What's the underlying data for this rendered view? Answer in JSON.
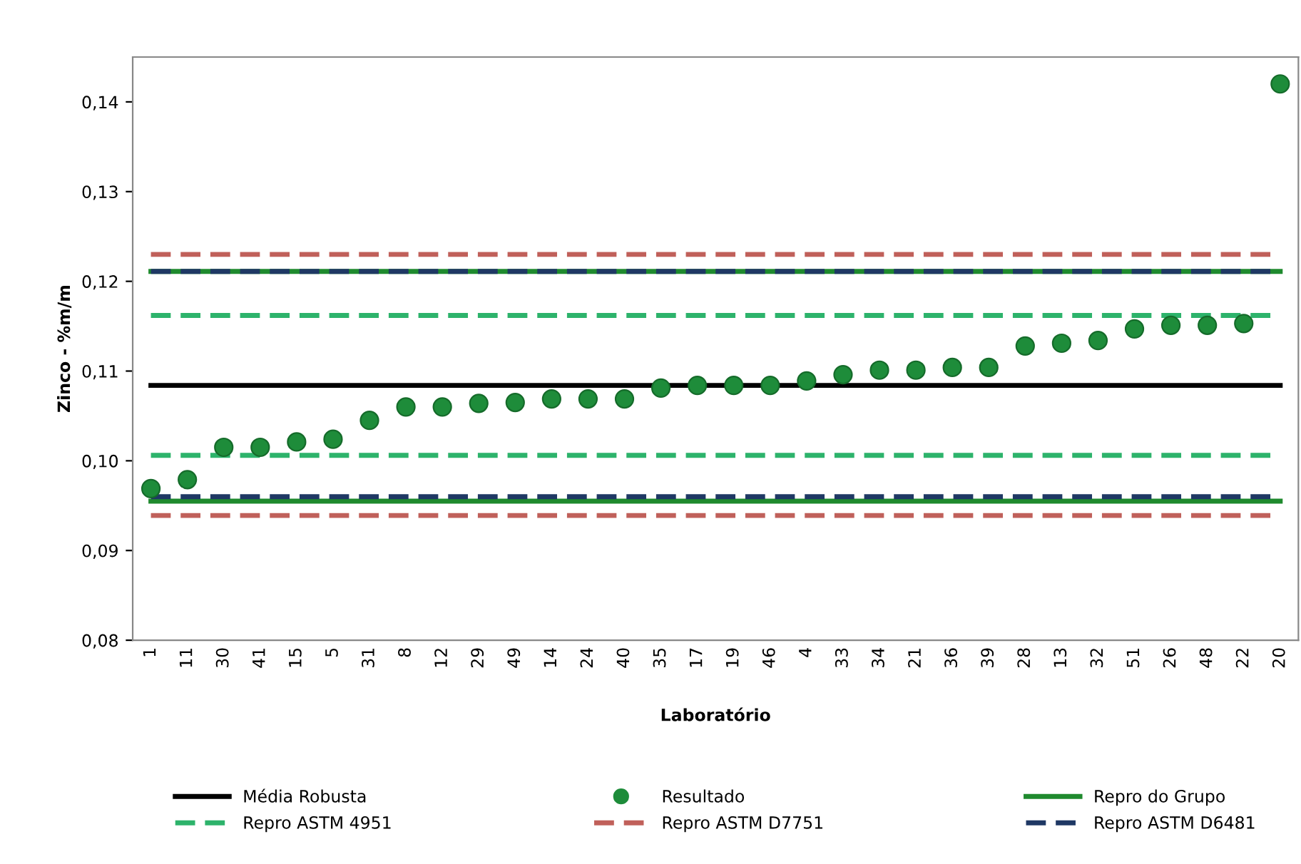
{
  "chart_data": {
    "type": "scatter",
    "xlabel": "Laboratório",
    "ylabel": "Zinco - %m/m",
    "categories": [
      "1",
      "11",
      "30",
      "41",
      "15",
      "5",
      "31",
      "8",
      "12",
      "29",
      "49",
      "14",
      "24",
      "40",
      "35",
      "17",
      "19",
      "46",
      "4",
      "33",
      "34",
      "21",
      "36",
      "39",
      "28",
      "13",
      "32",
      "51",
      "26",
      "48",
      "22",
      "20"
    ],
    "series": [
      {
        "name": "Resultado",
        "color": "#1e8c3a",
        "values": [
          0.0969,
          0.0979,
          0.1015,
          0.1015,
          0.1021,
          0.1024,
          0.1045,
          0.106,
          0.106,
          0.1064,
          0.1065,
          0.1069,
          0.1069,
          0.1069,
          0.1081,
          0.1084,
          0.1084,
          0.1084,
          0.1089,
          0.1096,
          0.1101,
          0.1101,
          0.1104,
          0.1104,
          0.1128,
          0.1131,
          0.1134,
          0.1147,
          0.1151,
          0.1151,
          0.1153,
          0.142
        ]
      }
    ],
    "ref_lines": [
      {
        "axis": "y",
        "value": 0.1084,
        "label": "Média Robusta",
        "color": "#000000",
        "line_style": "solid"
      },
      {
        "axis": "y",
        "value": 0.1211,
        "label": "Repro do Grupo",
        "color": "#1f8a2e",
        "line_style": "solid"
      },
      {
        "axis": "y",
        "value": 0.0955,
        "color": "#1f8a2e",
        "line_style": "solid"
      },
      {
        "axis": "y",
        "value": 0.1162,
        "label": "Repro ASTM 4951",
        "color": "#2db36b",
        "line_style": "dashed"
      },
      {
        "axis": "y",
        "value": 0.1006,
        "color": "#2db36b",
        "line_style": "dashed"
      },
      {
        "axis": "y",
        "value": 0.123,
        "label": "Repro ASTM D7751",
        "color": "#c0605a",
        "line_style": "dashed"
      },
      {
        "axis": "y",
        "value": 0.0939,
        "color": "#c0605a",
        "line_style": "dashed"
      },
      {
        "axis": "y",
        "value": 0.1211,
        "label": "Repro ASTM D6481",
        "color": "#1f3864",
        "line_style": "dashed"
      },
      {
        "axis": "y",
        "value": 0.096,
        "color": "#1f3864",
        "line_style": "dashed"
      }
    ],
    "ylim": [
      0.08,
      0.145
    ],
    "yticks": [
      {
        "value": 0.08,
        "label": "0,08"
      },
      {
        "value": 0.09,
        "label": "0,09"
      },
      {
        "value": 0.1,
        "label": "0,10"
      },
      {
        "value": 0.11,
        "label": "0,11"
      },
      {
        "value": 0.12,
        "label": "0,12"
      },
      {
        "value": 0.13,
        "label": "0,13"
      },
      {
        "value": 0.14,
        "label": "0,14"
      }
    ],
    "marker": "circle",
    "grid": false,
    "legend": "bottom"
  }
}
